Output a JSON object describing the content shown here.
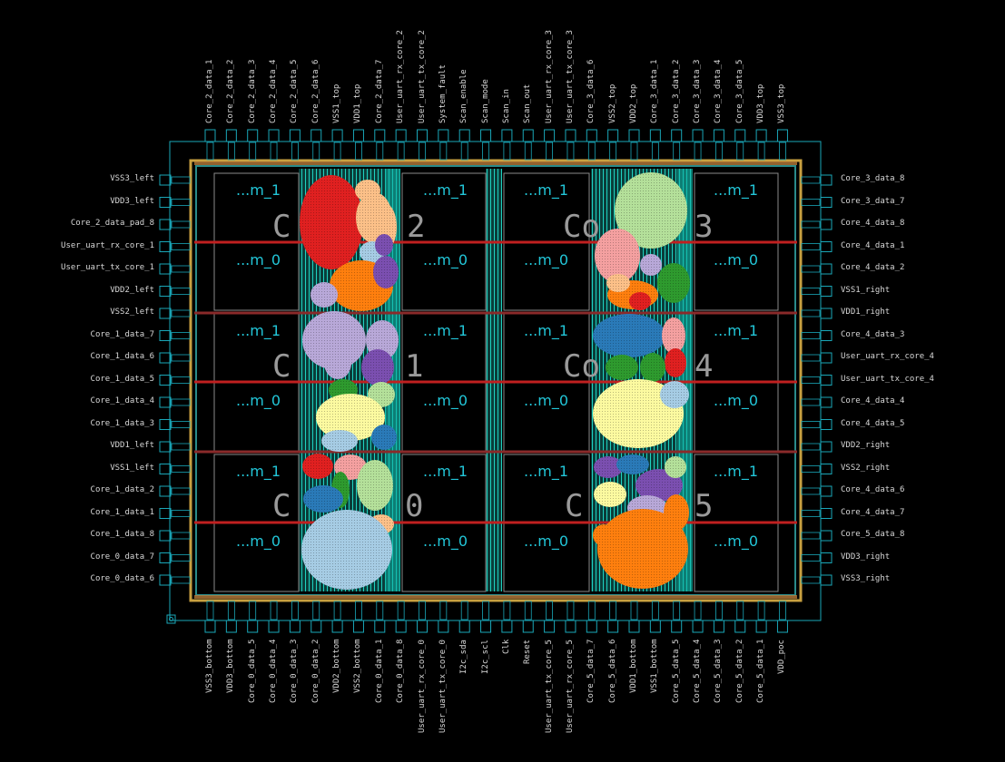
{
  "pins": {
    "top": [
      "Core_2_data_1",
      "Core_2_data_2",
      "Core_2_data_3",
      "Core_2_data_4",
      "Core_2_data_5",
      "Core_2_data_6",
      "VSS1_top",
      "VDD1_top",
      "Core_2_data_7",
      "User_uart_rx_core_2",
      "User_uart_tx_core_2",
      "System_fault",
      "Scan_enable",
      "Scan_mode",
      "Scan_in",
      "Scan_out",
      "User_uart_rx_core_3",
      "User_uart_tx_core_3",
      "Core_3_data_6",
      "VSS2_top",
      "VDD2_top",
      "Core_3_data_1",
      "Core_3_data_2",
      "Core_3_data_3",
      "Core_3_data_4",
      "Core_3_data_5",
      "VDD3_top",
      "VSS3_top"
    ],
    "left": [
      "VSS3_left",
      "VDD3_left",
      "Core_2_data_pad_8",
      "User_uart_rx_core_1",
      "User_uart_tx_core_1",
      "VDD2_left",
      "VSS2_left",
      "Core_1_data_7",
      "Core_1_data_6",
      "Core_1_data_5",
      "Core_1_data_4",
      "Core_1_data_3",
      "VDD1_left",
      "VSS1_left",
      "Core_1_data_2",
      "Core_1_data_1",
      "Core_1_data_8",
      "Core_0_data_7",
      "Core_0_data_6"
    ],
    "right": [
      "Core_3_data_8",
      "Core_3_data_7",
      "Core_4_data_8",
      "Core_4_data_1",
      "Core_4_data_2",
      "VSS1_right",
      "VDD1_right",
      "Core_4_data_3",
      "User_uart_rx_core_4",
      "User_uart_tx_core_4",
      "Core_4_data_4",
      "Core_4_data_5",
      "VDD2_right",
      "VSS2_right",
      "Core_4_data_6",
      "Core_4_data_7",
      "Core_5_data_8",
      "VDD3_right",
      "VSS3_right"
    ],
    "bottom": [
      "VSS3_bottom",
      "VDD3_bottom",
      "Core_0_data_5",
      "Core_0_data_4",
      "Core_0_data_3",
      "Core_0_data_2",
      "VDD2_bottom",
      "VSS2_bottom",
      "Core_0_data_1",
      "Core_0_data_8",
      "User_uart_rx_core_0",
      "User_uart_tx_core_0",
      "I2c_sda",
      "I2c_scl",
      "Clk",
      "Reset",
      "User_uart_tx_core_5",
      "User_uart_rx_core_5",
      "Core_5_data_7",
      "Core_5_data_6",
      "VDD1_bottom",
      "VSS1_bottom",
      "Core_5_data_5",
      "Core_5_data_4",
      "Core_5_data_3",
      "Core_5_data_2",
      "Core_5_data_1",
      "VDD_poc"
    ]
  },
  "block_labels": {
    "m1": "...m_1",
    "m0": "...m_0"
  },
  "core_labels": {
    "c": "C",
    "core0_digit": "0",
    "core1_digit": "1",
    "core2_digit": "2",
    "core3_digit": "3",
    "core4_digit": "4",
    "core5_digit": "5",
    "c_mid": "Co"
  },
  "colors": {
    "background": "#000000",
    "pad_outline": "#1aa7b8",
    "channel_teal": "#0fb5a6",
    "rail_red": "#c02020",
    "pin_text": "#d8d8d8",
    "block_text": "#22c6d8",
    "cluster_red": "#e02020",
    "cluster_orange": "#ff7f0e",
    "cluster_purple": "#7b4fb0",
    "cluster_lavender": "#b8a8d8",
    "cluster_yellow": "#fcfaa0",
    "cluster_lightblue": "#a6cce4",
    "cluster_blue": "#2a7ab8",
    "cluster_green": "#2e9a2e",
    "cluster_lightgreen": "#b4e09a",
    "cluster_pink": "#f4a0a0",
    "cluster_peach": "#fcc088"
  }
}
